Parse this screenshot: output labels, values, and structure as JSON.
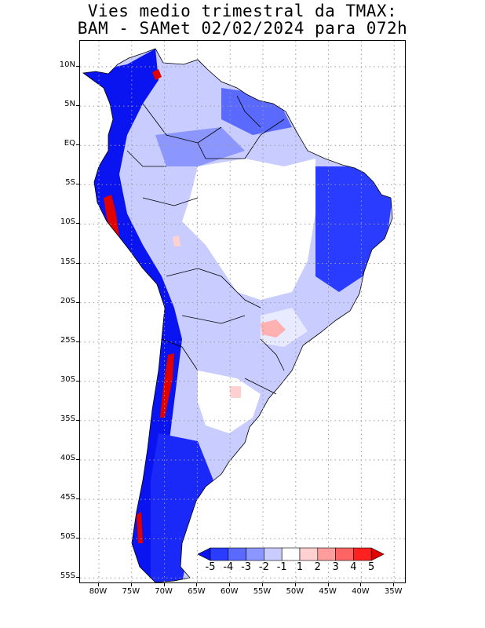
{
  "title": {
    "line1": "Vies medio trimestral da TMAX:",
    "line2": "BAM - SAMet 02/02/2024  para 072h"
  },
  "map": {
    "lon_labels": [
      "80W",
      "75W",
      "70W",
      "65W",
      "60W",
      "55W",
      "50W",
      "45W",
      "40W",
      "35W"
    ],
    "lat_labels": [
      "10N",
      "5N",
      "EQ",
      "5S",
      "10S",
      "15S",
      "20S",
      "25S",
      "30S",
      "35S",
      "40S",
      "45S",
      "50S",
      "55S"
    ],
    "gridlines": true,
    "gridline_style": "dotted",
    "region": "South America"
  },
  "colorbar": {
    "labels": [
      "-5",
      "-4",
      "-3",
      "-2",
      "-1",
      "1",
      "2",
      "3",
      "4",
      "5"
    ],
    "colors": [
      "#0a14f0",
      "#2a3cff",
      "#5a6aff",
      "#8c96ff",
      "#c8ccff",
      "#ffffff",
      "#ffd0d0",
      "#ff9c9c",
      "#ff6464",
      "#ff2020",
      "#e00000"
    ]
  },
  "colors": {
    "ocean": "#ffffff",
    "border": "#000000",
    "strong_cold": "#0a14f0",
    "cold": "#5a6aff",
    "mild_cold": "#c8ccff",
    "neutral": "#ffffff",
    "warm": "#ffb0b0",
    "hot": "#e00000"
  }
}
